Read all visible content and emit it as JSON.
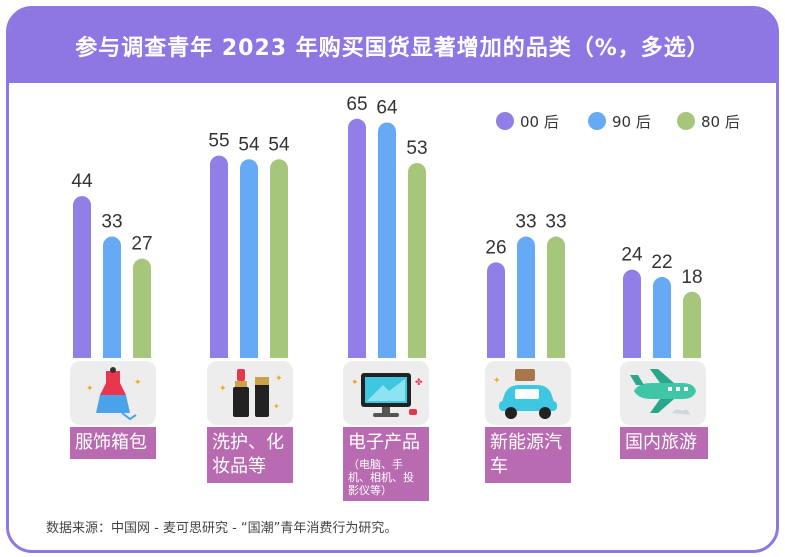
{
  "title": "参与调查青年 2023 年购买国货显著增加的品类（%，多选）",
  "source": "数据来源：中国网 - 麦可思研究 - “国潮”青年消费行为研究。",
  "colors": {
    "frame": "#8f77e3",
    "label_bg": "#b86bb0",
    "series_00": "#917ee6",
    "series_90": "#66aaf5",
    "series_80": "#a6c67c"
  },
  "chart_data": {
    "type": "bar",
    "title": "参与调查青年 2023 年购买国货显著增加的品类（%，多选）",
    "categories": [
      "服饰箱包",
      "洗护、化妆品等",
      "电子产品",
      "新能源汽车",
      "国内旅游"
    ],
    "category_sub": [
      "",
      "",
      "（电脑、手机、相机、投影仪等）",
      "",
      ""
    ],
    "series": [
      {
        "name": "00 后",
        "values": [
          44,
          55,
          65,
          26,
          24
        ]
      },
      {
        "name": "90 后",
        "values": [
          33,
          54,
          64,
          33,
          22
        ]
      },
      {
        "name": "80 后",
        "values": [
          27,
          54,
          53,
          33,
          18
        ]
      }
    ],
    "ylim": [
      0,
      65
    ],
    "legend": "top-right",
    "grid": false,
    "icons": [
      "dress-icon",
      "cosmetics-icon",
      "monitor-icon",
      "electric-car-icon",
      "airplane-icon"
    ]
  }
}
